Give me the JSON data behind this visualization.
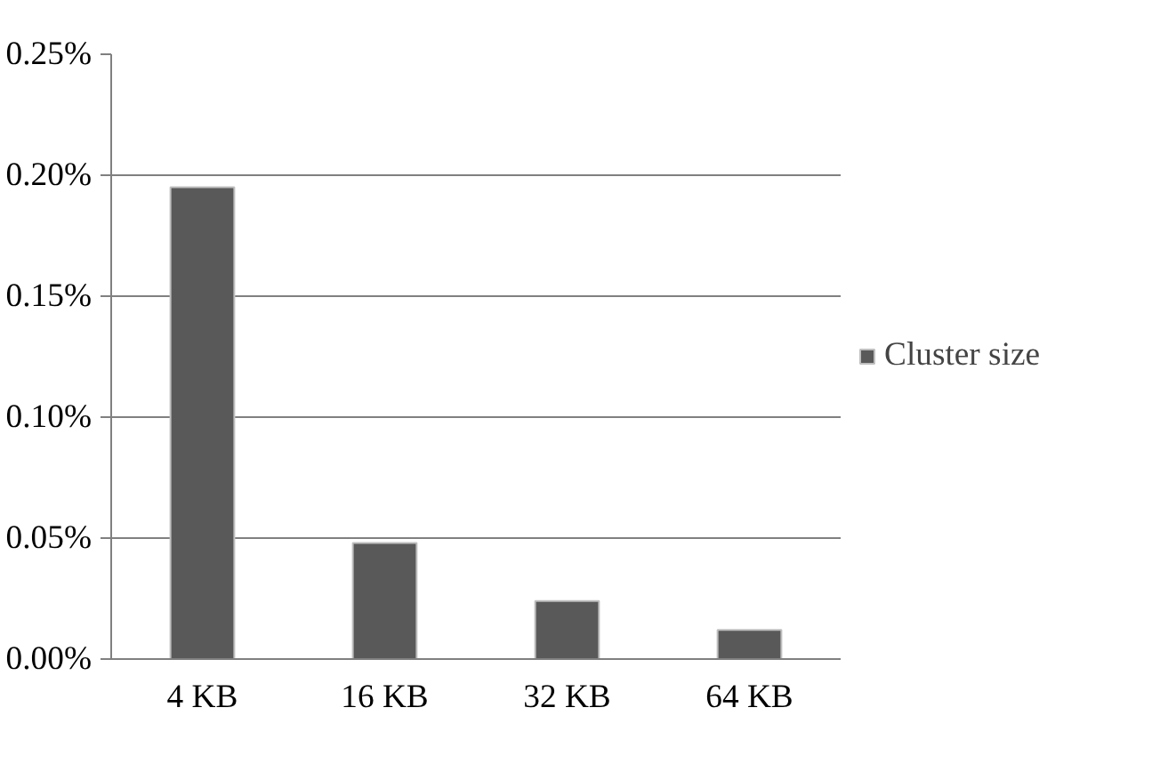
{
  "chart_data": {
    "type": "bar",
    "categories": [
      "4 KB",
      "16 KB",
      "32 KB",
      "64 KB"
    ],
    "series": [
      {
        "name": "Cluster size",
        "color": "#595959",
        "values": [
          0.195,
          0.048,
          0.024,
          0.012
        ]
      }
    ],
    "ylim": [
      0,
      0.25
    ],
    "yticks": [
      {
        "value": 0,
        "label": "0.00%"
      },
      {
        "value": 0.05,
        "label": "0.05%"
      },
      {
        "value": 0.1,
        "label": "0.10%"
      },
      {
        "value": 0.15,
        "label": "0.15%"
      },
      {
        "value": 0.2,
        "label": "0.20%"
      },
      {
        "value": 0.25,
        "label": "0.25%"
      }
    ],
    "grid": "y",
    "legend": "right"
  }
}
